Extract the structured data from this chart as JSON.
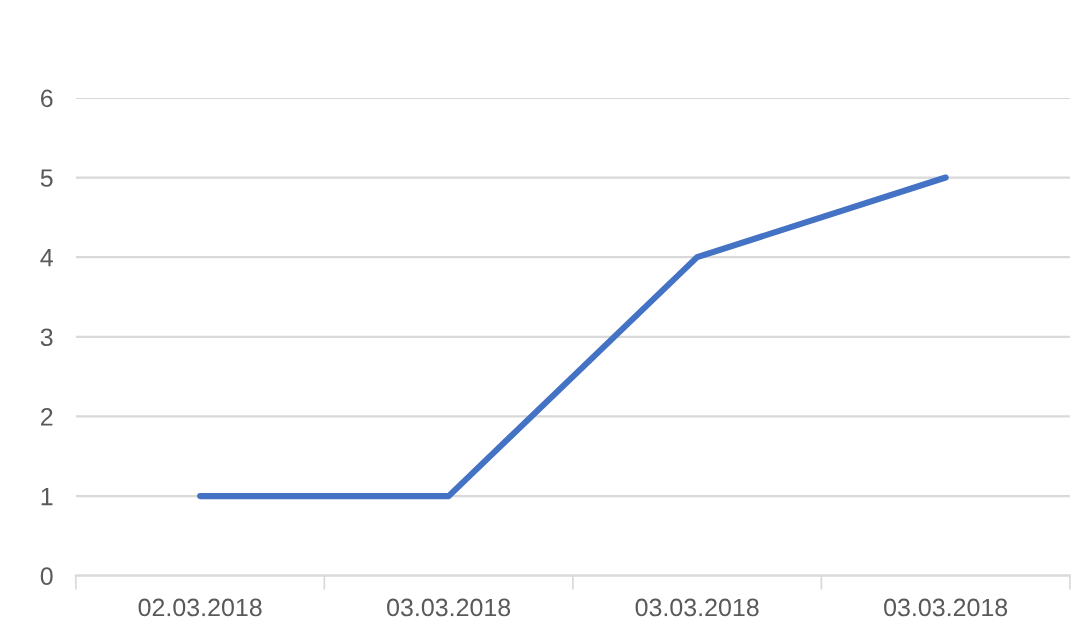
{
  "chart_data": {
    "type": "line",
    "categories": [
      "02.03.2018",
      "03.03.2018",
      "03.03.2018",
      "03.03.2018"
    ],
    "series": [
      {
        "color": "#4472c4",
        "values": [
          1,
          1,
          4,
          5
        ]
      }
    ],
    "ylim": [
      0,
      6
    ],
    "yticks": [
      0,
      1,
      2,
      3,
      4,
      5,
      6
    ],
    "grid": "y",
    "marker": "none",
    "line_style": "solid"
  }
}
